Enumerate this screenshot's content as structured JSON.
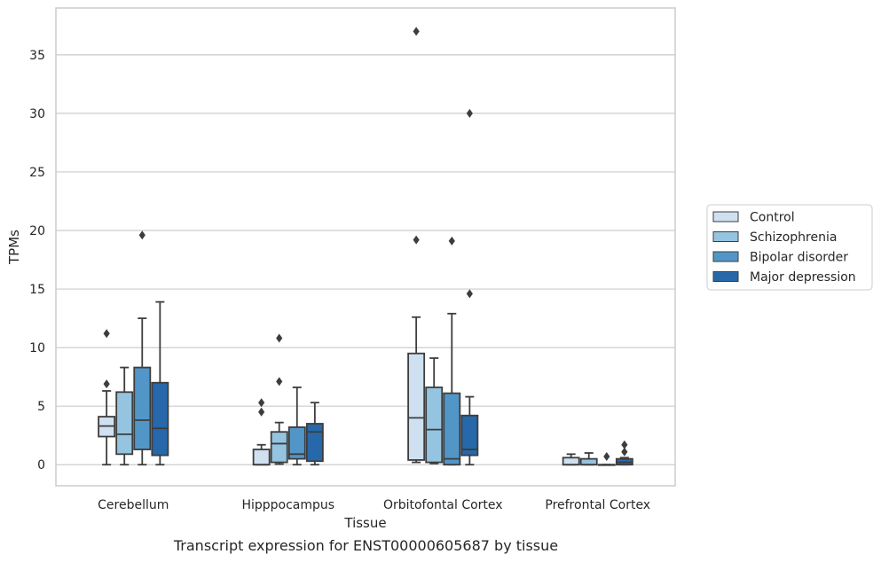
{
  "caption": "Transcript expression for ENST00000605687 by tissue",
  "chart_data": {
    "type": "box",
    "xlabel": "Tissue",
    "ylabel": "TPMs",
    "ylim": [
      -1.8,
      39
    ],
    "yticks": [
      0,
      5,
      10,
      15,
      20,
      25,
      30,
      35
    ],
    "grid": "horizontal",
    "legend_position": "right",
    "categories": [
      "Cerebellum",
      "Hipppocampus",
      "Orbitofontal Cortex",
      "Prefrontal Cortex"
    ],
    "series": [
      {
        "name": "Control",
        "color": "#cfe0f0",
        "boxes": [
          {
            "whislo": 0,
            "q1": 2.4,
            "median": 3.3,
            "q3": 4.1,
            "whishi": 6.3,
            "fliers": [
              6.9,
              11.2
            ]
          },
          {
            "whislo": 0,
            "q1": 0,
            "median": 0,
            "q3": 1.3,
            "whishi": 1.7,
            "fliers": [
              4.5,
              5.3
            ]
          },
          {
            "whislo": 0.2,
            "q1": 0.4,
            "median": 4.0,
            "q3": 9.5,
            "whishi": 12.6,
            "fliers": [
              19.2,
              37.0
            ]
          },
          {
            "whislo": 0,
            "q1": 0,
            "median": 0,
            "q3": 0.6,
            "whishi": 0.9,
            "fliers": []
          }
        ]
      },
      {
        "name": "Schizophrenia",
        "color": "#94c4df",
        "boxes": [
          {
            "whislo": 0,
            "q1": 0.9,
            "median": 2.6,
            "q3": 6.2,
            "whishi": 8.3,
            "fliers": []
          },
          {
            "whislo": 0.05,
            "q1": 0.2,
            "median": 1.8,
            "q3": 2.8,
            "whishi": 3.6,
            "fliers": [
              7.1,
              10.8
            ]
          },
          {
            "whislo": 0.1,
            "q1": 0.2,
            "median": 3.0,
            "q3": 6.6,
            "whishi": 9.1,
            "fliers": []
          },
          {
            "whislo": 0,
            "q1": 0,
            "median": 0,
            "q3": 0.5,
            "whishi": 1.0,
            "fliers": []
          }
        ]
      },
      {
        "name": "Bipolar disorder",
        "color": "#5296c8",
        "boxes": [
          {
            "whislo": 0,
            "q1": 1.3,
            "median": 3.8,
            "q3": 8.3,
            "whishi": 12.5,
            "fliers": [
              19.6
            ]
          },
          {
            "whislo": 0,
            "q1": 0.5,
            "median": 0.9,
            "q3": 3.2,
            "whishi": 6.6,
            "fliers": []
          },
          {
            "whislo": 0,
            "q1": 0,
            "median": 0.5,
            "q3": 6.1,
            "whishi": 12.9,
            "fliers": [
              19.1
            ]
          },
          {
            "whislo": 0,
            "q1": 0,
            "median": 0,
            "q3": 0,
            "whishi": 0,
            "fliers": [
              0.7
            ]
          }
        ]
      },
      {
        "name": "Major depression",
        "color": "#2668aa",
        "boxes": [
          {
            "whislo": 0,
            "q1": 0.8,
            "median": 3.1,
            "q3": 7.0,
            "whishi": 13.9,
            "fliers": []
          },
          {
            "whislo": 0,
            "q1": 0.3,
            "median": 2.8,
            "q3": 3.5,
            "whishi": 5.3,
            "fliers": []
          },
          {
            "whislo": 0,
            "q1": 0.8,
            "median": 1.3,
            "q3": 4.2,
            "whishi": 5.8,
            "fliers": [
              14.6,
              30.0
            ]
          },
          {
            "whislo": 0,
            "q1": 0,
            "median": 0.2,
            "q3": 0.5,
            "whishi": 0.6,
            "fliers": [
              1.1,
              1.7
            ]
          }
        ]
      }
    ]
  }
}
